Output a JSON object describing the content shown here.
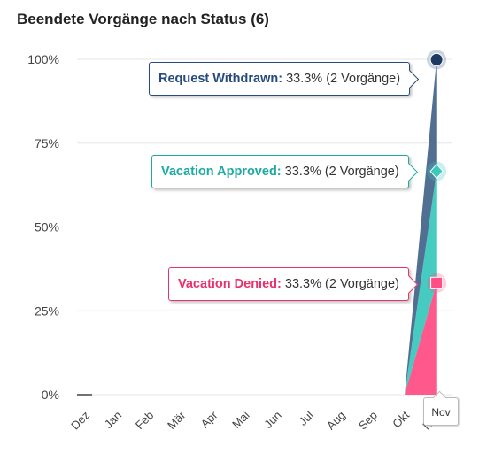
{
  "chart_data": {
    "type": "area",
    "title": "Beendete Vorgänge nach Status (6)",
    "categories": [
      "Dez",
      "Jan",
      "Feb",
      "Mär",
      "Apr",
      "Mai",
      "Jun",
      "Jul",
      "Aug",
      "Sep",
      "Okt",
      "Nov"
    ],
    "y_ticks": [
      "0%",
      "25%",
      "50%",
      "75%",
      "100%"
    ],
    "ylim": [
      0,
      100
    ],
    "stacked": true,
    "percent": true,
    "grid": true,
    "series": [
      {
        "name": "Vacation Denied",
        "color": "#ff4f86",
        "marker": "square",
        "values": [
          0,
          0,
          0,
          0,
          0,
          0,
          0,
          0,
          0,
          0,
          0,
          33.3
        ]
      },
      {
        "name": "Vacation Approved",
        "color": "#3cc8be",
        "marker": "diamond",
        "values": [
          0,
          0,
          0,
          0,
          0,
          0,
          0,
          0,
          0,
          0,
          0,
          33.3
        ]
      },
      {
        "name": "Request Withdrawn",
        "color": "#48678c",
        "marker": "circle",
        "values": [
          0,
          0,
          0,
          0,
          0,
          0,
          0,
          0,
          0,
          0,
          0,
          33.3
        ]
      }
    ],
    "hover_category": "Nov",
    "tooltips": [
      {
        "label": "Request Withdrawn:",
        "value": "33.3% (2 Vorgänge)",
        "color": "#274b7d"
      },
      {
        "label": "Vacation Approved:",
        "value": "33.3% (2 Vorgänge)",
        "color": "#1eaaa3"
      },
      {
        "label": "Vacation Denied:",
        "value": "33.3% (2 Vorgänge)",
        "color": "#e8326c"
      }
    ]
  }
}
